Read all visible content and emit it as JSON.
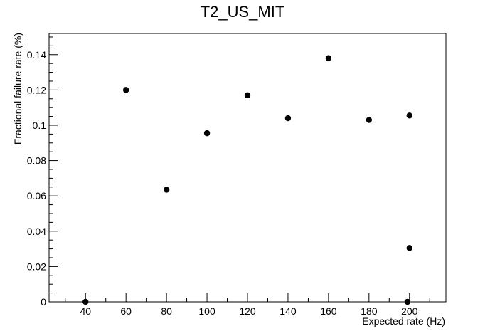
{
  "chart_data": {
    "type": "scatter",
    "title": "T2_US_MIT",
    "xlabel": "Expected rate (Hz)",
    "ylabel": "Fractional failure rate (%)",
    "xlim": [
      22,
      218
    ],
    "ylim": [
      0,
      0.152
    ],
    "x_ticks": [
      40,
      60,
      80,
      100,
      120,
      140,
      160,
      180,
      200
    ],
    "x_tick_labels": [
      "40",
      "60",
      "80",
      "100",
      "120",
      "140",
      "160",
      "180",
      "200"
    ],
    "y_ticks": [
      0,
      0.02,
      0.04,
      0.06,
      0.08,
      0.1,
      0.12,
      0.14
    ],
    "y_tick_labels": [
      "0",
      "0.02",
      "0.04",
      "0.06",
      "0.08",
      "0.1",
      "0.12",
      "0.14"
    ],
    "x_minor_step": 10,
    "y_minor_step": 0.005,
    "grid": false,
    "legend": "none",
    "marker_color": "#000000",
    "points": [
      {
        "x": 40,
        "y": 0.0
      },
      {
        "x": 60,
        "y": 0.12
      },
      {
        "x": 80,
        "y": 0.0635
      },
      {
        "x": 100,
        "y": 0.0955
      },
      {
        "x": 120,
        "y": 0.117
      },
      {
        "x": 140,
        "y": 0.104
      },
      {
        "x": 160,
        "y": 0.138
      },
      {
        "x": 180,
        "y": 0.103
      },
      {
        "x": 199,
        "y": 0.0
      },
      {
        "x": 200,
        "y": 0.1055
      },
      {
        "x": 200,
        "y": 0.0305
      }
    ]
  }
}
